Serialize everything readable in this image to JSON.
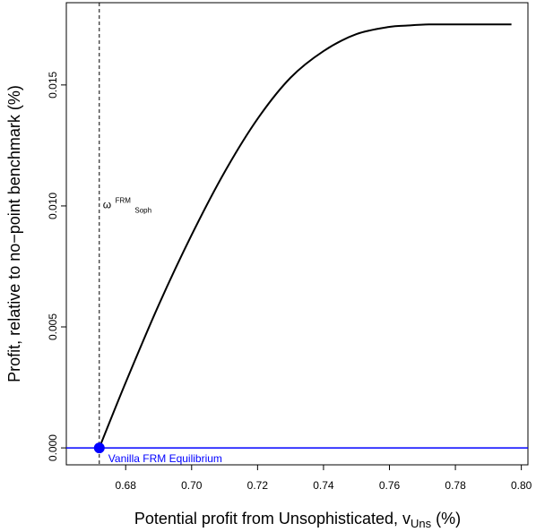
{
  "chart_data": {
    "type": "line",
    "xlabel": {
      "text": "Potential profit from Unsophisticated, v",
      "subscript": "Uns",
      "suffix": " (%)"
    },
    "ylabel": "Profit, relative to no−point benchmark (%)",
    "xlim": [
      0.662,
      0.802
    ],
    "ylim": [
      -0.0007,
      0.0184
    ],
    "x_ticks": [
      0.68,
      0.7,
      0.72,
      0.74,
      0.76,
      0.78,
      0.8
    ],
    "x_tick_labels": [
      "0.68",
      "0.70",
      "0.72",
      "0.74",
      "0.76",
      "0.78",
      "0.80"
    ],
    "y_ticks": [
      0.0,
      0.005,
      0.01,
      0.015
    ],
    "y_tick_labels": [
      "0.000",
      "0.005",
      "0.010",
      "0.015"
    ],
    "grid": false,
    "series": [
      {
        "color": "#000000",
        "x": [
          0.672,
          0.68,
          0.69,
          0.7,
          0.71,
          0.72,
          0.73,
          0.74,
          0.75,
          0.76,
          0.765,
          0.772,
          0.78,
          0.79,
          0.797
        ],
        "y": [
          0.0,
          0.0027,
          0.0059,
          0.0088,
          0.0114,
          0.0136,
          0.0153,
          0.0164,
          0.0171,
          0.0174,
          0.01745,
          0.0175,
          0.0175,
          0.0175,
          0.0175
        ]
      }
    ],
    "hline": {
      "y": 0.0,
      "color": "#0000ff"
    },
    "vline": {
      "x": 0.672,
      "style": "dashed",
      "color": "#000000",
      "label": {
        "base": "ω",
        "sup": "FRM",
        "sub": "Soph"
      }
    },
    "point": {
      "x": 0.672,
      "y": 0.0,
      "color": "#0000ff",
      "label": "Vanilla FRM Equilibrium"
    }
  }
}
